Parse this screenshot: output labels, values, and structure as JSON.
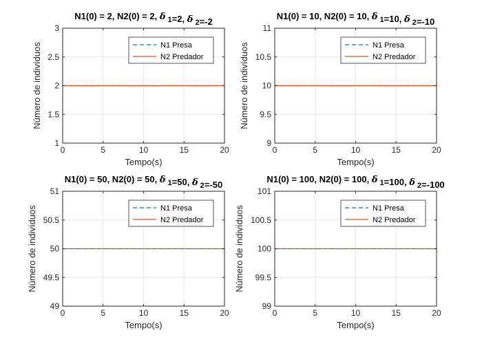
{
  "figure": {
    "background": "#ffffff"
  },
  "colors": {
    "series1": "#0072BD",
    "series2": "#D95319",
    "grid": "#e6e6e6",
    "axis": "#262626"
  },
  "chart_data": [
    {
      "type": "line",
      "title": "N1(0) = 2, N2(0) = 2, δ₁=2, δ₂=-2",
      "xlabel": "Tempo(s)",
      "ylabel": "Número de indivíduos",
      "xlim": [
        0,
        20
      ],
      "ylim": [
        1,
        3
      ],
      "xticks": [
        "0",
        "5",
        "10",
        "15",
        "20"
      ],
      "yticks": [
        "1",
        "1.5",
        "2",
        "2.5",
        "3"
      ],
      "grid": true,
      "legend_position": "top-right",
      "series": [
        {
          "name": "N1 Presa",
          "style": "dashed",
          "x": [
            0,
            20
          ],
          "y": [
            2,
            2
          ]
        },
        {
          "name": "N2 Predador",
          "style": "solid",
          "x": [
            0,
            20
          ],
          "y": [
            2,
            2
          ]
        }
      ]
    },
    {
      "type": "line",
      "title": "N1(0) = 10, N2(0) = 10, δ₁=10, δ₂=-10",
      "xlabel": "Tempo(s)",
      "ylabel": "Número de indivíduos",
      "xlim": [
        0,
        20
      ],
      "ylim": [
        9,
        11
      ],
      "xticks": [
        "0",
        "5",
        "10",
        "15",
        "20"
      ],
      "yticks": [
        "9",
        "9.5",
        "10",
        "10.5",
        "11"
      ],
      "grid": true,
      "legend_position": "top-right",
      "series": [
        {
          "name": "N1 Presa",
          "style": "dashed",
          "x": [
            0,
            20
          ],
          "y": [
            10,
            10
          ]
        },
        {
          "name": "N2 Predador",
          "style": "solid",
          "x": [
            0,
            20
          ],
          "y": [
            10,
            10
          ]
        }
      ]
    },
    {
      "type": "line",
      "title": "N1(0) = 50, N2(0) = 50, δ₁=50, δ₂=-50",
      "xlabel": "Tempo(s)",
      "ylabel": "Número de indivíduos",
      "xlim": [
        0,
        20
      ],
      "ylim": [
        49,
        51
      ],
      "xticks": [
        "0",
        "5",
        "10",
        "15",
        "20"
      ],
      "yticks": [
        "49",
        "49.5",
        "50",
        "50.5",
        "51"
      ],
      "grid": true,
      "legend_position": "top-right",
      "series": [
        {
          "name": "N1 Presa",
          "style": "dashed",
          "x": [
            0,
            20
          ],
          "y": [
            50,
            50
          ]
        },
        {
          "name": "N2 Predador",
          "style": "solid",
          "x": [
            0,
            20
          ],
          "y": [
            50,
            50
          ]
        }
      ]
    },
    {
      "type": "line",
      "title": "N1(0) = 100, N2(0) = 100, δ₁=100, δ₂=-100",
      "xlabel": "Tempo(s)",
      "ylabel": "Número de indivíduos",
      "xlim": [
        0,
        20
      ],
      "ylim": [
        99,
        101
      ],
      "xticks": [
        "0",
        "5",
        "10",
        "15",
        "20"
      ],
      "yticks": [
        "99",
        "99.5",
        "100",
        "100.5",
        "101"
      ],
      "grid": true,
      "legend_position": "top-right",
      "series": [
        {
          "name": "N1 Presa",
          "style": "dashed",
          "x": [
            0,
            20
          ],
          "y": [
            100,
            100
          ]
        },
        {
          "name": "N2 Predador",
          "style": "solid",
          "x": [
            0,
            20
          ],
          "y": [
            100,
            100
          ]
        }
      ]
    }
  ]
}
